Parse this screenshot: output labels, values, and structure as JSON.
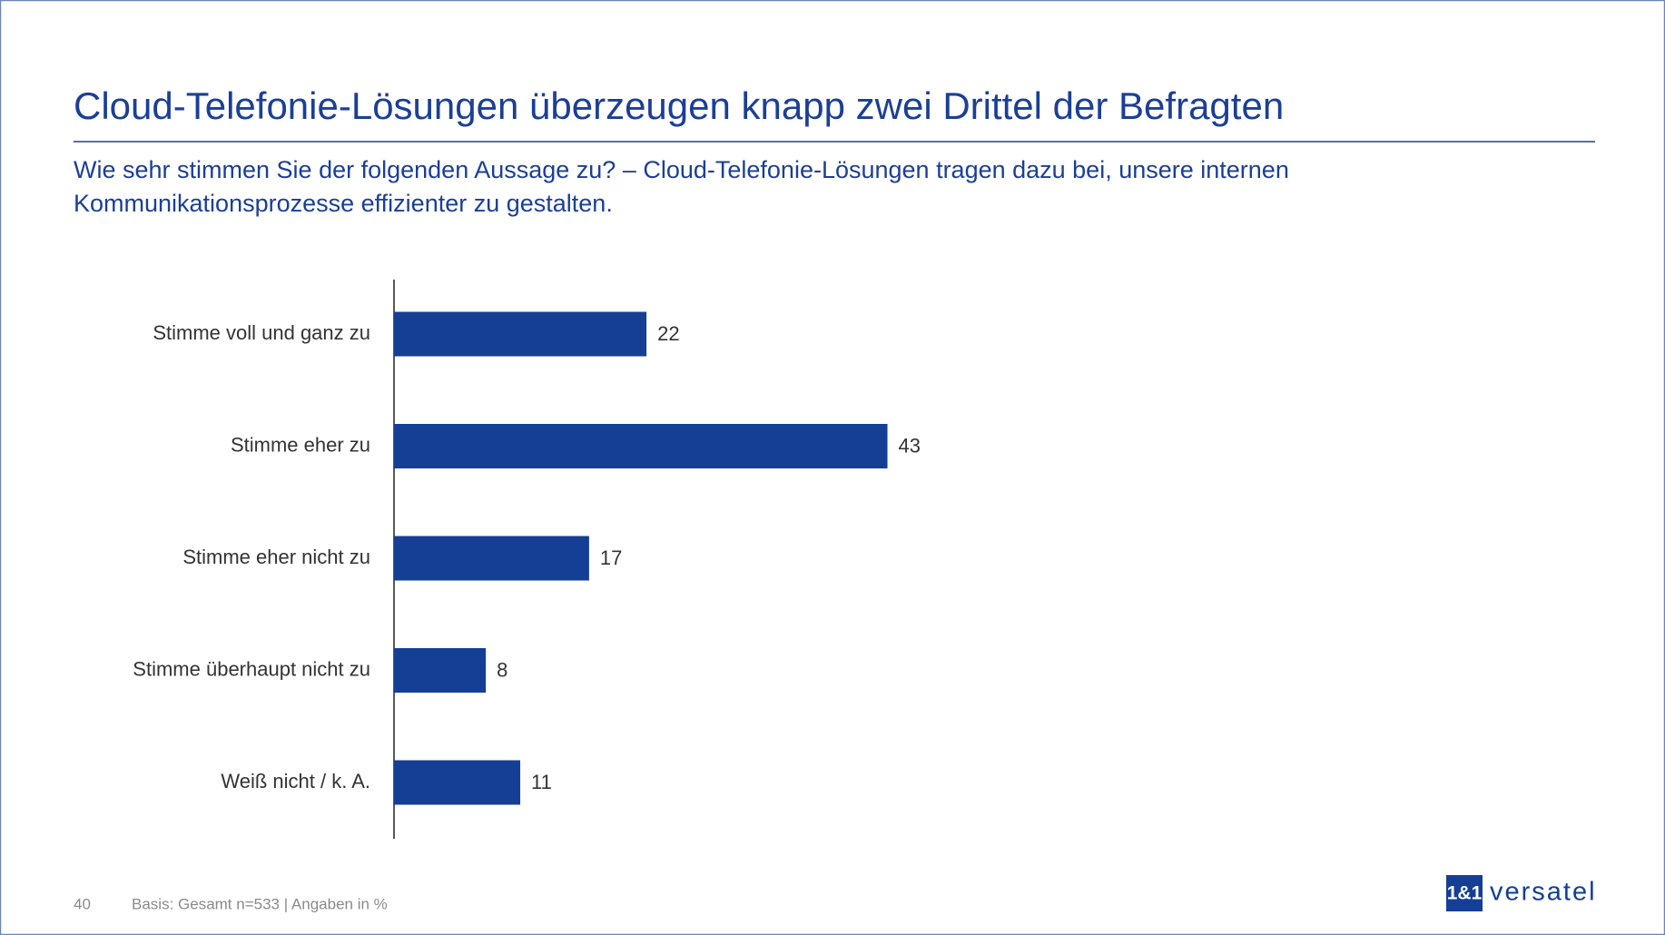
{
  "chart_data": {
    "type": "hbar",
    "title": "Cloud-Telefonie-Lösungen überzeugen knapp zwei Drittel der Befragten",
    "subtitle": [
      "Wie sehr stimmen Sie der folgenden Aussage zu? – Cloud-Telefonie-Lösungen tragen dazu bei, unsere internen",
      "Kommunikationsprozesse effizienter zu gestalten."
    ],
    "categories": [
      "Stimme voll und ganz zu",
      "Stimme eher zu",
      "Stimme eher nicht zu",
      "Stimme überhaupt nicht zu",
      "Weiß nicht / k. A."
    ],
    "values": [
      22,
      43,
      17,
      8,
      11
    ],
    "color": "#143f95"
  },
  "footer": {
    "page": "40",
    "note": "Basis: Gesamt n=533 | Angaben in %"
  },
  "logo": {
    "mark": "1&1",
    "text": "versatel"
  }
}
